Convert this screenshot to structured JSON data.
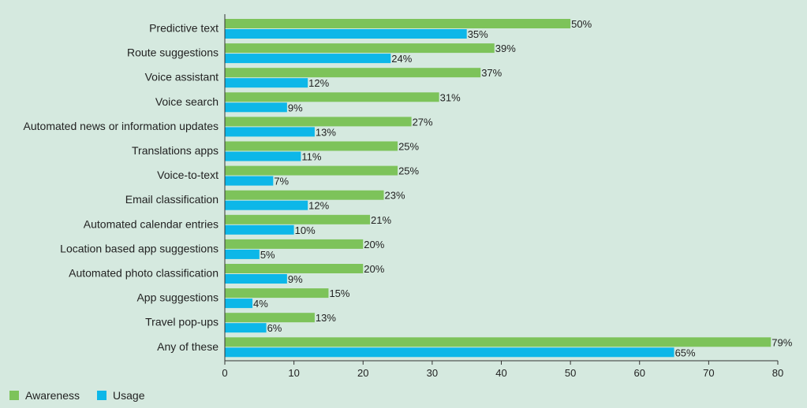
{
  "chart_data": {
    "type": "bar",
    "orientation": "horizontal",
    "categories": [
      "Predictive text",
      "Route suggestions",
      "Voice assistant",
      "Voice search",
      "Automated news or information updates",
      "Translations apps",
      "Voice-to-text",
      "Email classification",
      "Automated calendar entries",
      "Location based app suggestions",
      "Automated photo classification",
      "App suggestions",
      "Travel pop-ups",
      "Any of these"
    ],
    "series": [
      {
        "name": "Awareness",
        "color": "#7dc35a",
        "values": [
          50,
          39,
          37,
          31,
          27,
          25,
          25,
          23,
          21,
          20,
          20,
          15,
          13,
          79
        ],
        "labels": [
          "50%",
          "39%",
          "37%",
          "31%",
          "27%",
          "25%",
          "25%",
          "23%",
          "21%",
          "20%",
          "20%",
          "15%",
          "13%",
          "79%"
        ]
      },
      {
        "name": "Usage",
        "color": "#0db7e8",
        "values": [
          35,
          24,
          12,
          9,
          13,
          11,
          7,
          12,
          10,
          5,
          9,
          4,
          6,
          65
        ],
        "labels": [
          "35%",
          "24%",
          "12%",
          "9%",
          "13%",
          "11%",
          "7%",
          "12%",
          "10%",
          "5%",
          "9%",
          "4%",
          "6%",
          "65%"
        ]
      }
    ],
    "xlim": [
      0,
      80
    ],
    "xticks": [
      "0",
      "10",
      "20",
      "30",
      "40",
      "50",
      "60",
      "70",
      "80"
    ],
    "title": "",
    "xlabel": "",
    "ylabel": "",
    "grid": false,
    "legend_position": "bottom-left"
  }
}
